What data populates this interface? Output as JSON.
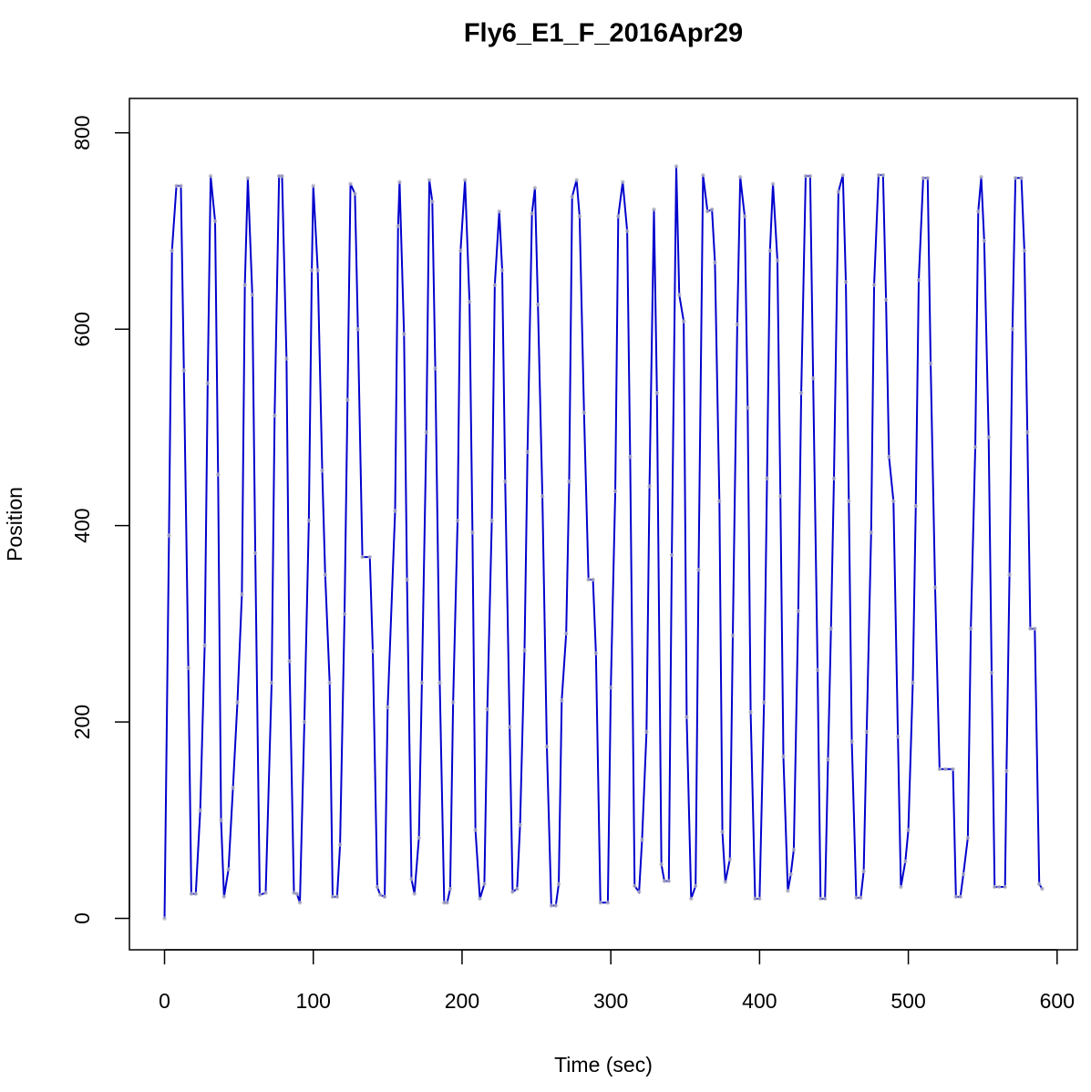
{
  "chart_data": {
    "type": "line",
    "title": "Fly6_E1_F_2016Apr29",
    "x_label": "Time (sec)",
    "y_label": "Position",
    "x": [
      0,
      3,
      5,
      8,
      11,
      13,
      16,
      18,
      21,
      24,
      27,
      29,
      31,
      34,
      36,
      38,
      40,
      43,
      46,
      49,
      52,
      54,
      56,
      59,
      61,
      64,
      68,
      72,
      74,
      77,
      79,
      82,
      84,
      87,
      89,
      91,
      94,
      97,
      99,
      100,
      103,
      106,
      108,
      111,
      113,
      116,
      118,
      121,
      123,
      125,
      128,
      130,
      133,
      138,
      140,
      143,
      145,
      148,
      150,
      155,
      157,
      158,
      161,
      163,
      166,
      168,
      171,
      173,
      176,
      178,
      180,
      182,
      185,
      188,
      190,
      192,
      194,
      197,
      199,
      202,
      205,
      207,
      209,
      212,
      215,
      217,
      220,
      222,
      225,
      227,
      229,
      232,
      234,
      237,
      239,
      242,
      244,
      247,
      249,
      251,
      254,
      257,
      260,
      263,
      265,
      267,
      270,
      272,
      274,
      277,
      279,
      282,
      285,
      288,
      290,
      293,
      298,
      300,
      303,
      305,
      308,
      311,
      313,
      316,
      319,
      321,
      324,
      326,
      329,
      331,
      334,
      336,
      339,
      341,
      344,
      346,
      349,
      351,
      354,
      357,
      359,
      362,
      365,
      368,
      370,
      373,
      375,
      377,
      380,
      382,
      385,
      387,
      390,
      392,
      394,
      397,
      400,
      403,
      405,
      407,
      409,
      412,
      414,
      416,
      419,
      421,
      423,
      426,
      428,
      431,
      434,
      436,
      439,
      441,
      444,
      446,
      448,
      450,
      453,
      456,
      458,
      460,
      462,
      465,
      468,
      470,
      472,
      475,
      477,
      480,
      483,
      485,
      487,
      490,
      493,
      495,
      498,
      500,
      503,
      505,
      507,
      510,
      513,
      515,
      518,
      521,
      525,
      530,
      532,
      535,
      537,
      540,
      542,
      545,
      547,
      549,
      551,
      554,
      556,
      558,
      561,
      565,
      566,
      568,
      570,
      572,
      576,
      578,
      580,
      582,
      585,
      588,
      590
    ],
    "values": [
      0,
      390,
      680,
      746,
      746,
      558,
      255,
      25,
      25,
      110,
      278,
      545,
      756,
      710,
      452,
      100,
      22,
      50,
      133,
      220,
      330,
      645,
      754,
      635,
      372,
      24,
      26,
      240,
      512,
      756,
      756,
      570,
      262,
      26,
      25,
      16,
      200,
      405,
      660,
      746,
      660,
      456,
      350,
      240,
      22,
      22,
      75,
      310,
      528,
      748,
      738,
      600,
      368,
      368,
      272,
      32,
      24,
      22,
      215,
      415,
      705,
      750,
      595,
      345,
      40,
      25,
      82,
      240,
      495,
      752,
      730,
      560,
      240,
      16,
      16,
      30,
      220,
      405,
      680,
      752,
      628,
      393,
      90,
      20,
      35,
      213,
      405,
      645,
      720,
      660,
      445,
      195,
      27,
      30,
      95,
      273,
      475,
      718,
      744,
      625,
      430,
      175,
      13,
      13,
      35,
      222,
      290,
      445,
      735,
      752,
      715,
      515,
      345,
      345,
      270,
      16,
      16,
      235,
      435,
      715,
      750,
      700,
      470,
      33,
      27,
      80,
      190,
      440,
      722,
      535,
      55,
      38,
      38,
      370,
      766,
      635,
      608,
      205,
      20,
      33,
      355,
      757,
      720,
      722,
      668,
      425,
      88,
      37,
      60,
      288,
      605,
      755,
      715,
      520,
      210,
      20,
      20,
      220,
      448,
      680,
      748,
      670,
      430,
      165,
      28,
      45,
      70,
      313,
      535,
      756,
      756,
      550,
      253,
      20,
      20,
      162,
      295,
      448,
      740,
      757,
      648,
      425,
      180,
      21,
      21,
      48,
      190,
      393,
      645,
      757,
      757,
      630,
      470,
      425,
      185,
      32,
      58,
      90,
      240,
      420,
      650,
      754,
      754,
      565,
      337,
      152,
      152,
      152,
      22,
      22,
      45,
      82,
      295,
      480,
      720,
      755,
      690,
      490,
      250,
      32,
      32,
      32,
      150,
      350,
      600,
      754,
      754,
      680,
      495,
      295,
      295,
      35,
      30
    ],
    "color": "#0000cd",
    "point_color": "#b0b0c0",
    "xlim": [
      -23.6,
      613.6
    ],
    "ylim": [
      -32,
      835
    ],
    "xticks": [
      0,
      100,
      200,
      300,
      400,
      500,
      600
    ],
    "yticks": [
      0,
      200,
      400,
      600,
      800
    ]
  }
}
